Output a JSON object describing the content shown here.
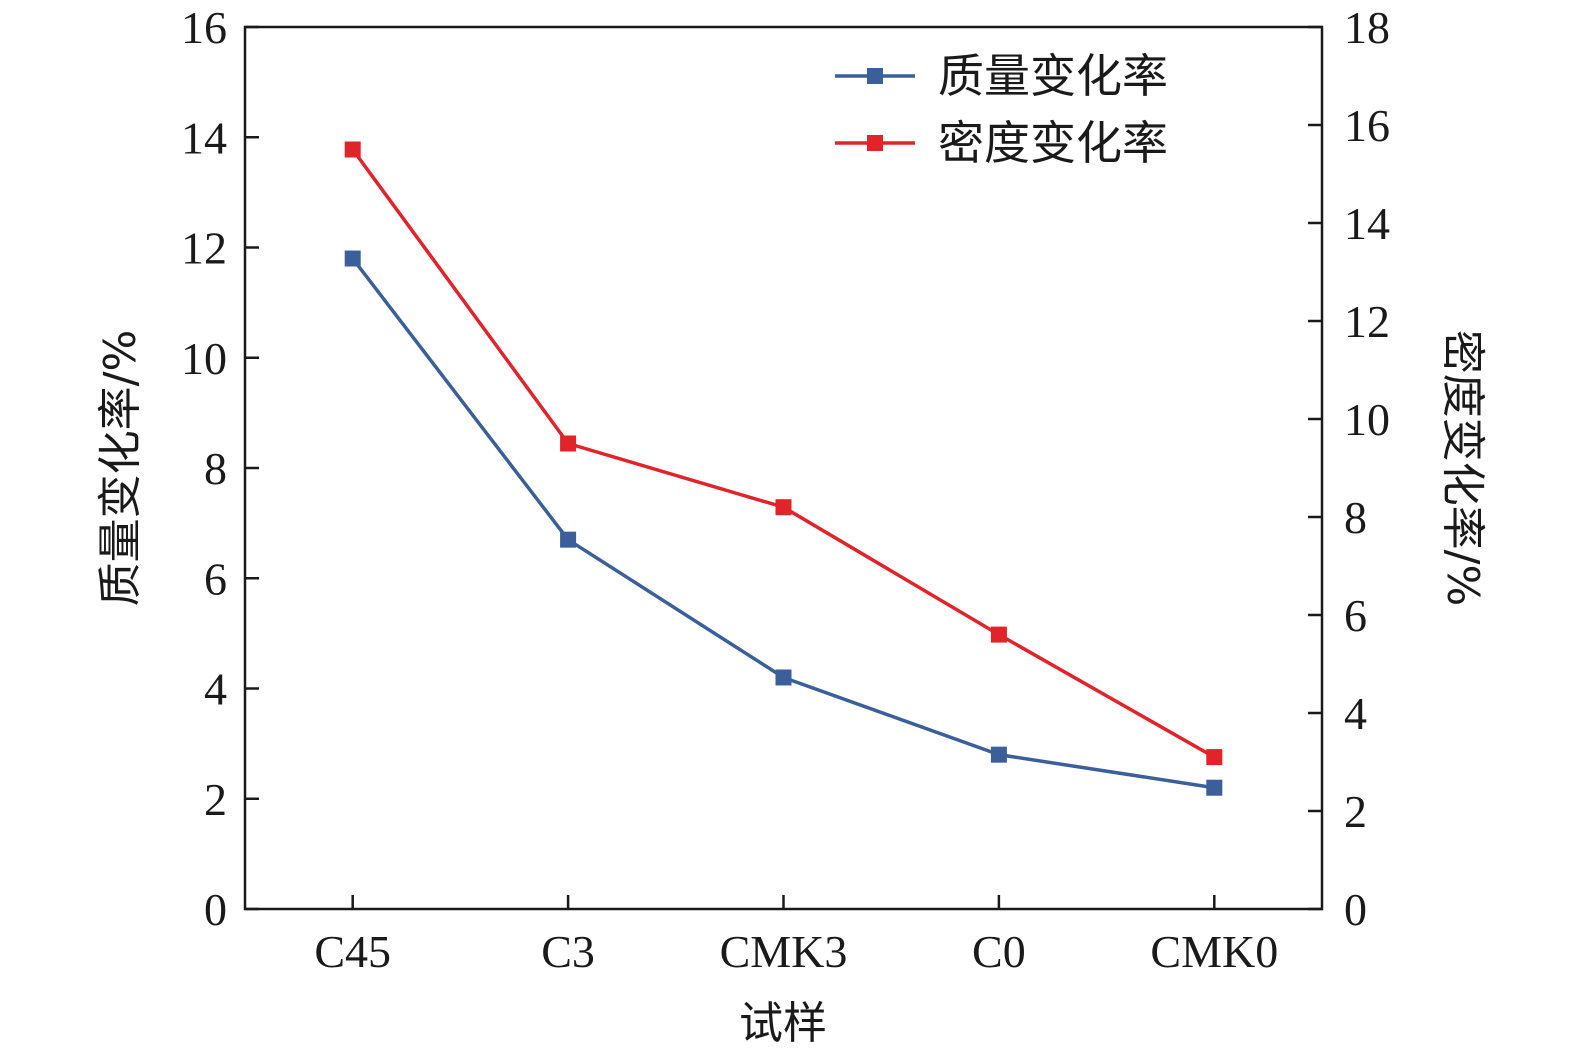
{
  "chart_data": {
    "type": "line",
    "categories": [
      "C45",
      "C3",
      "CMK3",
      "C0",
      "CMK0"
    ],
    "xlabel": "试样",
    "ylabel": "质量变化率/%",
    "y2label": "密度变化率/%",
    "ylim": [
      0,
      16
    ],
    "y2lim": [
      0,
      18
    ],
    "yticks": [
      0,
      2,
      4,
      6,
      8,
      10,
      12,
      14,
      16
    ],
    "y2ticks": [
      0,
      2,
      4,
      6,
      8,
      10,
      12,
      14,
      16,
      18
    ],
    "legend_position": "top-right",
    "grid": false,
    "series": [
      {
        "name": "质量变化率",
        "axis": "left",
        "color": "#3a5f9a",
        "marker": "square",
        "values": [
          11.8,
          6.7,
          4.2,
          2.8,
          2.2
        ]
      },
      {
        "name": "密度变化率",
        "axis": "right",
        "color": "#e0242a",
        "marker": "square",
        "values": [
          15.5,
          9.5,
          8.2,
          5.6,
          3.1
        ]
      }
    ]
  }
}
